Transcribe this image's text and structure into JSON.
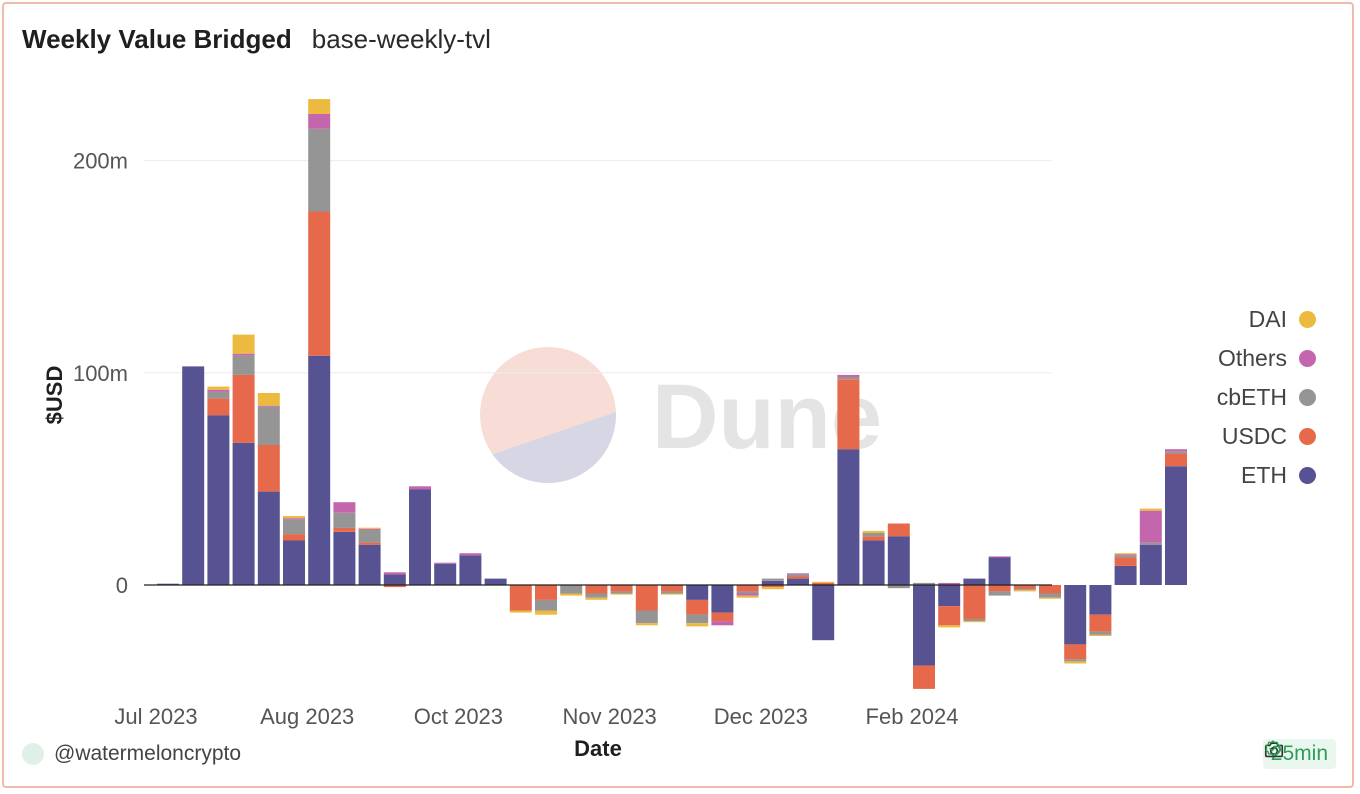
{
  "header": {
    "title": "Weekly Value Bridged",
    "subtitle": "base-weekly-tvl"
  },
  "watermark": {
    "text": "Dune"
  },
  "footer": {
    "author": "@watermeloncrypto",
    "refresh": "25min"
  },
  "icons": {
    "camera": "camera-icon",
    "check": "check-circle-icon",
    "avatar": "avatar-icon"
  },
  "colors": {
    "ETH": "#575392",
    "USDC": "#e5694a",
    "cbETH": "#959595",
    "Others": "#c466ad",
    "DAI": "#ecba3e"
  },
  "chart_data": {
    "type": "bar",
    "stacked": true,
    "xlabel": "Date",
    "ylabel": "$USD",
    "ylim": [
      -58,
      232
    ],
    "y_ticks": [
      {
        "value": 0,
        "label": "0"
      },
      {
        "value": 100,
        "label": "100m"
      },
      {
        "value": 200,
        "label": "200m"
      }
    ],
    "x_ticks": [
      {
        "index": 0,
        "label": "Jul 2023"
      },
      {
        "index": 6,
        "label": "Aug 2023"
      },
      {
        "index": 12,
        "label": "Oct 2023"
      },
      {
        "index": 18,
        "label": "Nov 2023"
      },
      {
        "index": 24,
        "label": "Dec 2023"
      },
      {
        "index": 30,
        "label": "Feb 2024"
      }
    ],
    "legend_position": "right",
    "legend_order": [
      "DAI",
      "Others",
      "cbETH",
      "USDC",
      "ETH"
    ],
    "series_order": [
      "ETH",
      "USDC",
      "cbETH",
      "Others",
      "DAI"
    ],
    "weeks": [
      {
        "ETH": 0.6,
        "USDC": 0,
        "cbETH": 0,
        "Others": 0,
        "DAI": 0
      },
      {
        "ETH": 103,
        "USDC": 0,
        "cbETH": 0,
        "Others": 0,
        "DAI": 0
      },
      {
        "ETH": 80,
        "USDC": 8,
        "cbETH": 3,
        "Others": 1,
        "DAI": 1.5
      },
      {
        "ETH": 67,
        "USDC": 32,
        "cbETH": 9,
        "Others": 1,
        "DAI": 9
      },
      {
        "ETH": 44,
        "USDC": 22,
        "cbETH": 18,
        "Others": 0.5,
        "DAI": 6
      },
      {
        "ETH": 21,
        "USDC": 3,
        "cbETH": 7,
        "Others": 0.5,
        "DAI": 1
      },
      {
        "ETH": 108,
        "USDC": 68,
        "cbETH": 39,
        "Others": 7,
        "DAI": 7
      },
      {
        "ETH": 25,
        "USDC": 2,
        "cbETH": 7,
        "Others": 5,
        "DAI": 0
      },
      {
        "ETH": 19,
        "USDC": 1,
        "cbETH": 6,
        "Others": 0.5,
        "DAI": 0.5
      },
      {
        "ETH": 5,
        "USDC": -1,
        "cbETH": 0,
        "Others": 1,
        "DAI": 0
      },
      {
        "ETH": 45,
        "USDC": 0,
        "cbETH": 0,
        "Others": 1.5,
        "DAI": 0
      },
      {
        "ETH": 10,
        "USDC": 0,
        "cbETH": 0,
        "Others": 0.5,
        "DAI": 0
      },
      {
        "ETH": 14,
        "USDC": 0,
        "cbETH": 0,
        "Others": 1,
        "DAI": 0
      },
      {
        "ETH": 3,
        "USDC": 0,
        "cbETH": 0,
        "Others": 0,
        "DAI": 0
      },
      {
        "ETH": 0,
        "USDC": -12,
        "cbETH": 0,
        "Others": 0,
        "DAI": -1
      },
      {
        "ETH": 0,
        "USDC": -7,
        "cbETH": -5,
        "Others": 0,
        "DAI": -2
      },
      {
        "ETH": 0,
        "USDC": 0,
        "cbETH": -4,
        "Others": 0,
        "DAI": -1
      },
      {
        "ETH": 0,
        "USDC": -4,
        "cbETH": -2,
        "Others": 0,
        "DAI": -1
      },
      {
        "ETH": 0,
        "USDC": -3,
        "cbETH": -1,
        "Others": 0,
        "DAI": -0.5
      },
      {
        "ETH": 0,
        "USDC": -12,
        "cbETH": -6,
        "Others": 0,
        "DAI": -1
      },
      {
        "ETH": 0,
        "USDC": -3,
        "cbETH": -1,
        "Others": 0,
        "DAI": -0.5
      },
      {
        "ETH": -7,
        "USDC": -7,
        "cbETH": -4,
        "Others": 0,
        "DAI": -1.5
      },
      {
        "ETH": -13,
        "USDC": -4,
        "cbETH": 0,
        "Others": -2,
        "DAI": 0
      },
      {
        "ETH": 0,
        "USDC": -3,
        "cbETH": -1,
        "Others": -1,
        "DAI": -1
      },
      {
        "ETH": 2,
        "USDC": -1,
        "cbETH": 1,
        "Others": 0,
        "DAI": -1
      },
      {
        "ETH": 3,
        "USDC": 1,
        "cbETH": 1,
        "Others": 0.5,
        "DAI": 0
      },
      {
        "ETH": -26,
        "USDC": 1,
        "cbETH": 0,
        "Others": 0,
        "DAI": 0.5
      },
      {
        "ETH": 64,
        "USDC": 33,
        "cbETH": 1,
        "Others": 1,
        "DAI": 0
      },
      {
        "ETH": 21,
        "USDC": 2,
        "cbETH": 1.5,
        "Others": 0,
        "DAI": 1
      },
      {
        "ETH": 23,
        "USDC": 6,
        "cbETH": -1.5,
        "Others": 0,
        "DAI": 0
      },
      {
        "ETH": -38,
        "USDC": -11,
        "cbETH": 1,
        "Others": 0,
        "DAI": 0
      },
      {
        "ETH": -10,
        "USDC": -9,
        "cbETH": 0,
        "Others": 1,
        "DAI": -1
      },
      {
        "ETH": 3,
        "USDC": -16,
        "cbETH": -1,
        "Others": 0,
        "DAI": -0.5
      },
      {
        "ETH": 13,
        "USDC": -3,
        "cbETH": -2,
        "Others": 0.5,
        "DAI": 0
      },
      {
        "ETH": 0,
        "USDC": -2,
        "cbETH": -0.5,
        "Others": 0,
        "DAI": -0.5
      },
      {
        "ETH": 0,
        "USDC": -4,
        "cbETH": -2,
        "Others": 0,
        "DAI": -0.5
      },
      {
        "ETH": -28,
        "USDC": -7,
        "cbETH": -1,
        "Others": 0,
        "DAI": -1
      },
      {
        "ETH": -14,
        "USDC": -8,
        "cbETH": -1.5,
        "Others": 0,
        "DAI": -0.5
      },
      {
        "ETH": 9,
        "USDC": 4,
        "cbETH": 1,
        "Others": 0.5,
        "DAI": 0.5
      },
      {
        "ETH": 19,
        "USDC": 0,
        "cbETH": 1,
        "Others": 15,
        "DAI": 1
      },
      {
        "ETH": 56,
        "USDC": 6,
        "cbETH": 1,
        "Others": 1,
        "DAI": 0
      }
    ]
  }
}
